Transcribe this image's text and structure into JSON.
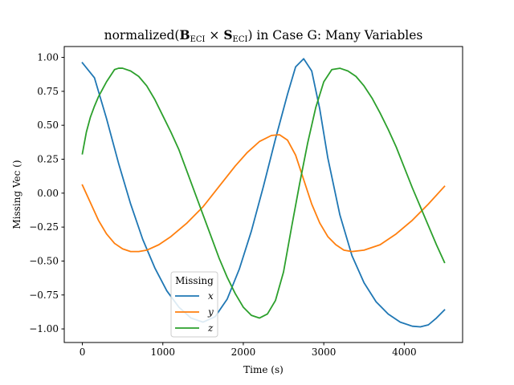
{
  "chart_data": {
    "type": "line",
    "title": {
      "prefix": "normalized(",
      "b_symbol": "B",
      "b_subscript": "ECI",
      "operator": " × ",
      "s_symbol": "S",
      "s_subscript": "ECI",
      "suffix": ") in Case G: Many Variables"
    },
    "xlabel": "Time (s)",
    "ylabel": "Missing Vec ()",
    "xlim": [
      -225,
      4725
    ],
    "ylim": [
      -1.1,
      1.08
    ],
    "xticks": [
      0,
      1000,
      2000,
      3000,
      4000
    ],
    "xtick_labels": [
      "0",
      "1000",
      "2000",
      "3000",
      "4000"
    ],
    "yticks": [
      -1.0,
      -0.75,
      -0.5,
      -0.25,
      0.0,
      0.25,
      0.5,
      0.75,
      1.0
    ],
    "ytick_labels": [
      "−1.00",
      "−0.75",
      "−0.50",
      "−0.25",
      "0.00",
      "0.25",
      "0.50",
      "0.75",
      "1.00"
    ],
    "grid": false,
    "legend": {
      "title": "Missing",
      "placement": "lower-center"
    },
    "series": [
      {
        "name": "x",
        "color": "#1f77b4",
        "points": [
          [
            0,
            0.96
          ],
          [
            150,
            0.85
          ],
          [
            300,
            0.55
          ],
          [
            450,
            0.22
          ],
          [
            600,
            -0.08
          ],
          [
            750,
            -0.34
          ],
          [
            900,
            -0.55
          ],
          [
            1050,
            -0.72
          ],
          [
            1200,
            -0.84
          ],
          [
            1350,
            -0.92
          ],
          [
            1500,
            -0.95
          ],
          [
            1650,
            -0.91
          ],
          [
            1800,
            -0.78
          ],
          [
            1950,
            -0.56
          ],
          [
            2100,
            -0.28
          ],
          [
            2250,
            0.05
          ],
          [
            2400,
            0.4
          ],
          [
            2550,
            0.73
          ],
          [
            2650,
            0.93
          ],
          [
            2750,
            0.99
          ],
          [
            2850,
            0.9
          ],
          [
            2950,
            0.62
          ],
          [
            3050,
            0.26
          ],
          [
            3200,
            -0.16
          ],
          [
            3350,
            -0.46
          ],
          [
            3500,
            -0.66
          ],
          [
            3650,
            -0.8
          ],
          [
            3800,
            -0.89
          ],
          [
            3950,
            -0.95
          ],
          [
            4100,
            -0.98
          ],
          [
            4200,
            -0.985
          ],
          [
            4300,
            -0.97
          ],
          [
            4400,
            -0.92
          ],
          [
            4500,
            -0.86
          ]
        ]
      },
      {
        "name": "y",
        "color": "#ff7f0e",
        "points": [
          [
            0,
            0.06
          ],
          [
            100,
            -0.07
          ],
          [
            200,
            -0.2
          ],
          [
            300,
            -0.3
          ],
          [
            400,
            -0.37
          ],
          [
            500,
            -0.41
          ],
          [
            600,
            -0.43
          ],
          [
            700,
            -0.43
          ],
          [
            800,
            -0.42
          ],
          [
            950,
            -0.38
          ],
          [
            1100,
            -0.32
          ],
          [
            1300,
            -0.22
          ],
          [
            1500,
            -0.1
          ],
          [
            1700,
            0.05
          ],
          [
            1900,
            0.2
          ],
          [
            2050,
            0.3
          ],
          [
            2200,
            0.38
          ],
          [
            2350,
            0.425
          ],
          [
            2450,
            0.43
          ],
          [
            2550,
            0.39
          ],
          [
            2650,
            0.28
          ],
          [
            2750,
            0.1
          ],
          [
            2850,
            -0.08
          ],
          [
            2950,
            -0.22
          ],
          [
            3050,
            -0.32
          ],
          [
            3150,
            -0.38
          ],
          [
            3250,
            -0.42
          ],
          [
            3350,
            -0.43
          ],
          [
            3500,
            -0.42
          ],
          [
            3700,
            -0.38
          ],
          [
            3900,
            -0.3
          ],
          [
            4100,
            -0.2
          ],
          [
            4300,
            -0.08
          ],
          [
            4500,
            0.05
          ]
        ]
      },
      {
        "name": "z",
        "color": "#2ca02c",
        "points": [
          [
            0,
            0.29
          ],
          [
            50,
            0.45
          ],
          [
            100,
            0.56
          ],
          [
            150,
            0.64
          ],
          [
            200,
            0.71
          ],
          [
            300,
            0.82
          ],
          [
            400,
            0.91
          ],
          [
            450,
            0.92
          ],
          [
            500,
            0.92
          ],
          [
            600,
            0.9
          ],
          [
            700,
            0.86
          ],
          [
            800,
            0.79
          ],
          [
            900,
            0.69
          ],
          [
            1000,
            0.57
          ],
          [
            1100,
            0.45
          ],
          [
            1200,
            0.32
          ],
          [
            1300,
            0.16
          ],
          [
            1400,
            0.0
          ],
          [
            1500,
            -0.16
          ],
          [
            1600,
            -0.32
          ],
          [
            1700,
            -0.48
          ],
          [
            1800,
            -0.62
          ],
          [
            1900,
            -0.74
          ],
          [
            2000,
            -0.84
          ],
          [
            2100,
            -0.9
          ],
          [
            2200,
            -0.92
          ],
          [
            2300,
            -0.89
          ],
          [
            2400,
            -0.79
          ],
          [
            2500,
            -0.58
          ],
          [
            2600,
            -0.25
          ],
          [
            2700,
            0.07
          ],
          [
            2800,
            0.37
          ],
          [
            2900,
            0.63
          ],
          [
            3000,
            0.82
          ],
          [
            3100,
            0.91
          ],
          [
            3200,
            0.92
          ],
          [
            3300,
            0.9
          ],
          [
            3400,
            0.86
          ],
          [
            3500,
            0.79
          ],
          [
            3600,
            0.7
          ],
          [
            3700,
            0.59
          ],
          [
            3800,
            0.47
          ],
          [
            3900,
            0.34
          ],
          [
            4000,
            0.19
          ],
          [
            4100,
            0.04
          ],
          [
            4200,
            -0.1
          ],
          [
            4300,
            -0.24
          ],
          [
            4400,
            -0.38
          ],
          [
            4500,
            -0.51
          ]
        ]
      }
    ]
  }
}
